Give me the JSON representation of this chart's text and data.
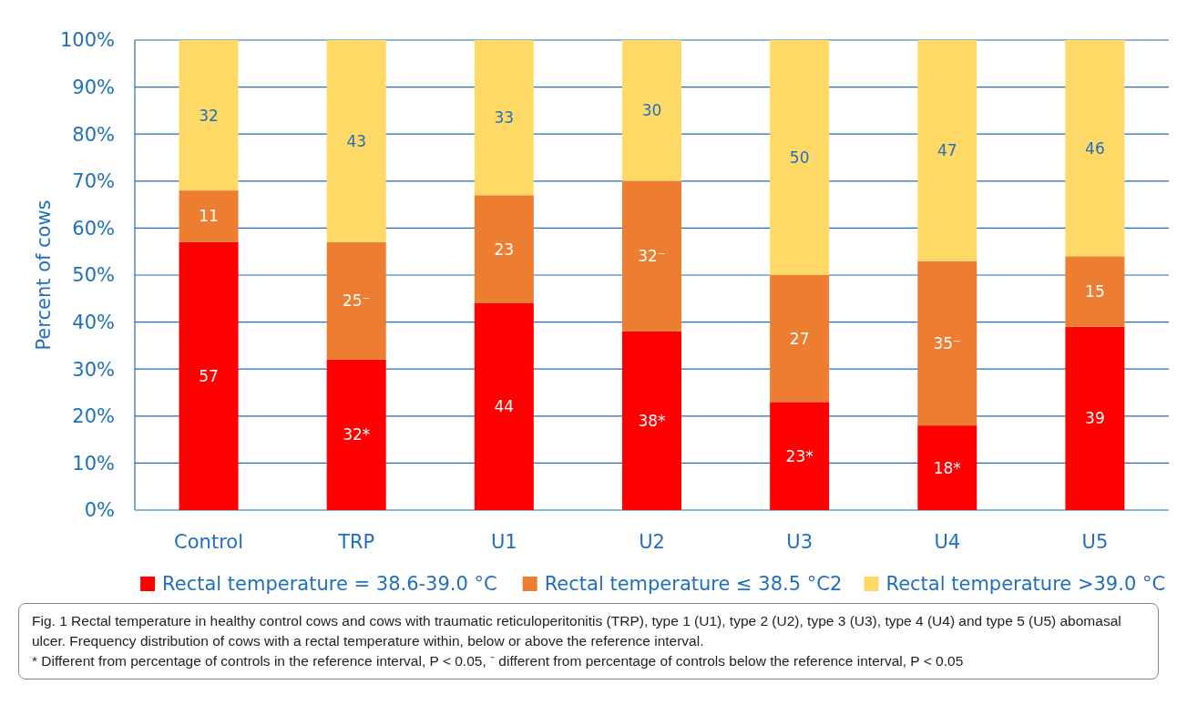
{
  "chart_data": {
    "type": "bar",
    "stacked": true,
    "ylabel": "Percent of cows",
    "categories": [
      "Control",
      "TRP",
      "U1",
      "U2",
      "U3",
      "U4",
      "U5"
    ],
    "series": [
      {
        "name": "Rectal temperature = 38.6-39.0 °C",
        "color": "#ff0000",
        "values": [
          57,
          32,
          44,
          38,
          23,
          18,
          39
        ],
        "value_labels": [
          "57",
          "32*",
          "44",
          "38*",
          "23*",
          "18*",
          "39"
        ]
      },
      {
        "name": "Rectal temperature ≤ 38.5 °C2",
        "color": "#ed7d31",
        "values": [
          11,
          25,
          23,
          32,
          27,
          35,
          15
        ],
        "value_labels": [
          "11",
          "25⁻",
          "23",
          "32⁻",
          "27",
          "35⁻",
          "15"
        ]
      },
      {
        "name": "Rectal temperature >39.0 °C",
        "color": "#ffd966",
        "values": [
          32,
          43,
          33,
          30,
          50,
          47,
          46
        ],
        "value_labels": [
          "32",
          "43",
          "33",
          "30",
          "50",
          "47",
          "46"
        ]
      }
    ],
    "ylim": [
      0,
      100
    ],
    "yticks": [
      {
        "value": 0,
        "label": "0%"
      },
      {
        "value": 10,
        "label": "10%"
      },
      {
        "value": 20,
        "label": "20%"
      },
      {
        "value": 30,
        "label": "30%"
      },
      {
        "value": 40,
        "label": "40%"
      },
      {
        "value": 50,
        "label": "50%"
      },
      {
        "value": 60,
        "label": "60%"
      },
      {
        "value": 70,
        "label": "70%"
      },
      {
        "value": 80,
        "label": "80%"
      },
      {
        "value": 90,
        "label": "90%"
      },
      {
        "value": 100,
        "label": "100%"
      }
    ],
    "grid": "y",
    "legend": "bottom",
    "annotations": [
      "Fig. 1 Rectal temperature in healthy control cows and cows with traumatic reticuloperitonitis (TRP), type 1 (U1), type 2 (U2), type 3 (U3), type 4 (U4) and type 5 (U5) abomasal ulcer. Frequency distribution of cows with a rectal temperature within, below or above the reference interval.",
      "* Different from percentage of controls in the reference interval, P < 0.05, ⁻ different from percentage of controls below the reference interval, P < 0.05"
    ]
  }
}
